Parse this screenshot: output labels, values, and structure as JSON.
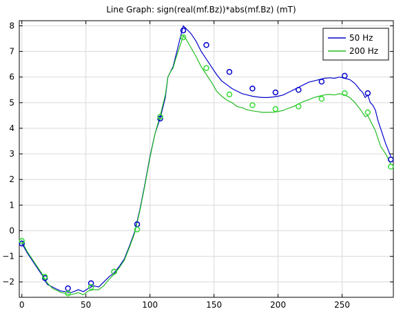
{
  "chart_data": {
    "type": "line",
    "title": "Line Graph: sign(real(mf.Bz))*abs(mf.Bz) (mT)",
    "xlabel": "",
    "ylabel": "",
    "xlim": [
      -2,
      290
    ],
    "ylim": [
      -2.6,
      8.2
    ],
    "x_ticks": [
      0,
      50,
      100,
      150,
      200,
      250
    ],
    "y_ticks": [
      -2,
      -1,
      0,
      1,
      2,
      3,
      4,
      5,
      6,
      7,
      8
    ],
    "grid": true,
    "legend_position": "top-right",
    "series": [
      {
        "name": "50 Hz",
        "color": "#0000cc",
        "line": {
          "x": [
            0,
            4,
            8,
            12,
            16,
            18,
            20,
            24,
            28,
            30,
            34,
            38,
            42,
            44,
            48,
            52,
            56,
            60,
            64,
            68,
            72,
            76,
            80,
            84,
            88,
            92,
            96,
            100,
            104,
            108,
            112,
            114,
            116,
            118,
            120,
            122,
            124,
            126,
            128,
            132,
            136,
            140,
            144,
            148,
            152,
            156,
            160,
            164,
            168,
            172,
            176,
            180,
            184,
            188,
            192,
            196,
            200,
            204,
            208,
            212,
            216,
            220,
            224,
            228,
            232,
            236,
            240,
            244,
            248,
            252,
            256,
            260,
            264,
            266,
            268,
            270,
            272,
            274,
            276,
            278,
            280,
            284,
            288
          ],
          "y": [
            -0.5,
            -0.85,
            -1.15,
            -1.45,
            -1.75,
            -1.95,
            -2.1,
            -2.2,
            -2.3,
            -2.35,
            -2.38,
            -2.42,
            -2.35,
            -2.3,
            -2.38,
            -2.25,
            -2.15,
            -2.2,
            -2.0,
            -1.8,
            -1.65,
            -1.4,
            -1.1,
            -0.6,
            -0.05,
            0.8,
            1.8,
            2.9,
            3.8,
            4.4,
            5.2,
            6.0,
            6.2,
            6.4,
            6.8,
            7.2,
            7.6,
            8.0,
            7.9,
            7.7,
            7.4,
            7.0,
            6.7,
            6.4,
            6.1,
            5.85,
            5.7,
            5.55,
            5.45,
            5.35,
            5.3,
            5.25,
            5.22,
            5.2,
            5.2,
            5.22,
            5.25,
            5.3,
            5.4,
            5.5,
            5.6,
            5.7,
            5.8,
            5.85,
            5.9,
            5.95,
            5.97,
            5.95,
            6.0,
            5.95,
            5.9,
            5.75,
            5.5,
            5.4,
            5.2,
            5.3,
            5.0,
            4.9,
            4.7,
            4.3,
            4.0,
            3.4,
            2.9
          ]
        },
        "markers": {
          "x": [
            0,
            18,
            36,
            54,
            72,
            90,
            108,
            126,
            144,
            162,
            180,
            198,
            216,
            234,
            252,
            270,
            288
          ],
          "y": [
            -0.5,
            -1.85,
            -2.25,
            -2.05,
            -1.6,
            0.25,
            4.38,
            7.82,
            7.25,
            6.2,
            5.55,
            5.4,
            5.5,
            5.82,
            6.05,
            5.37,
            2.78
          ]
        }
      },
      {
        "name": "200 Hz",
        "color": "#22bb22",
        "marker_color": "#33dd33",
        "line": {
          "x": [
            0,
            4,
            8,
            12,
            16,
            18,
            20,
            24,
            28,
            30,
            34,
            38,
            42,
            44,
            48,
            52,
            56,
            60,
            64,
            68,
            72,
            76,
            80,
            84,
            88,
            92,
            96,
            100,
            104,
            108,
            112,
            114,
            116,
            118,
            120,
            122,
            124,
            126,
            128,
            132,
            136,
            140,
            144,
            148,
            152,
            156,
            160,
            164,
            168,
            172,
            176,
            180,
            184,
            188,
            192,
            196,
            200,
            204,
            208,
            212,
            216,
            220,
            224,
            228,
            232,
            236,
            240,
            244,
            248,
            252,
            256,
            260,
            264,
            266,
            268,
            270,
            272,
            274,
            276,
            278,
            280,
            284,
            288
          ],
          "y": [
            -0.4,
            -0.8,
            -1.1,
            -1.4,
            -1.7,
            -1.9,
            -2.05,
            -2.25,
            -2.35,
            -2.4,
            -2.45,
            -2.5,
            -2.45,
            -2.42,
            -2.5,
            -2.35,
            -2.3,
            -2.3,
            -2.15,
            -1.9,
            -1.7,
            -1.45,
            -1.15,
            -0.65,
            -0.1,
            0.75,
            1.75,
            2.85,
            3.8,
            4.5,
            5.3,
            6.0,
            6.2,
            6.35,
            6.7,
            7.0,
            7.3,
            7.6,
            7.5,
            7.15,
            6.8,
            6.4,
            6.1,
            5.8,
            5.45,
            5.25,
            5.1,
            5.0,
            4.85,
            4.8,
            4.72,
            4.68,
            4.65,
            4.62,
            4.62,
            4.63,
            4.65,
            4.7,
            4.78,
            4.85,
            4.95,
            5.05,
            5.12,
            5.2,
            5.25,
            5.3,
            5.32,
            5.3,
            5.35,
            5.3,
            5.2,
            5.0,
            4.75,
            4.6,
            4.45,
            4.5,
            4.3,
            4.1,
            3.9,
            3.6,
            3.3,
            3.0,
            2.6
          ]
        },
        "markers": {
          "x": [
            0,
            18,
            36,
            54,
            72,
            90,
            108,
            126,
            144,
            162,
            180,
            198,
            216,
            234,
            252,
            270,
            288
          ],
          "y": [
            -0.4,
            -1.8,
            -2.45,
            -2.2,
            -1.6,
            0.05,
            4.45,
            7.55,
            6.35,
            5.32,
            4.9,
            4.75,
            4.85,
            5.15,
            5.37,
            4.62,
            2.5
          ]
        }
      }
    ]
  }
}
